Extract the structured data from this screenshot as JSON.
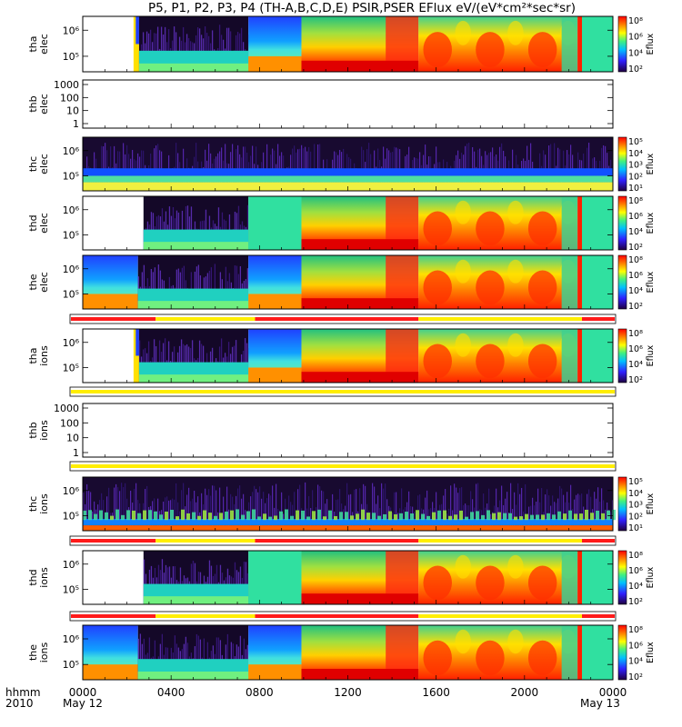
{
  "title": "P5, P1, P2, P3, P4 (TH-A,B,C,D,E) PSIR,PSER EFlux eV/(eV*cm²*sec*sr)",
  "bottom": {
    "hhmm": "hhmm",
    "year": "2010",
    "date_start": "May 12",
    "date_end": "May 13"
  },
  "chart_data": {
    "type": "heatmap",
    "x_axis": {
      "range_hours": [
        0,
        24
      ],
      "tick_labels": [
        "0000",
        "0400",
        "0800",
        "1200",
        "1600",
        "2000",
        "0000"
      ]
    },
    "panels": [
      {
        "id": "tha-elec",
        "ylabel": [
          "tha",
          "elec"
        ],
        "scale": "log",
        "yticks": [
          "10⁶",
          "10⁵"
        ],
        "colorbar": [
          "10⁸",
          "10⁶",
          "10⁴",
          "10²"
        ],
        "colorbar_label": "Eflux",
        "kind": "elec",
        "segments": [
          {
            "h0": 0.0,
            "h1": 2.3,
            "v": "empty"
          },
          {
            "h0": 2.3,
            "h1": 2.55,
            "v": "yellow_blue"
          },
          {
            "h0": 2.55,
            "h1": 7.5,
            "v": "dark_top"
          },
          {
            "h0": 7.5,
            "h1": 9.9,
            "v": "blue_band"
          },
          {
            "h0": 9.9,
            "h1": 15.2,
            "v": "red_grad"
          },
          {
            "h0": 15.2,
            "h1": 22.4,
            "v": "x_pattern"
          },
          {
            "h0": 22.4,
            "h1": 22.6,
            "v": "red_bar"
          },
          {
            "h0": 22.6,
            "h1": 24,
            "v": "green"
          }
        ]
      },
      {
        "id": "thb-elec",
        "ylabel": [
          "thb",
          "elec"
        ],
        "scale": "log",
        "yticks": [
          "1000",
          "100",
          "10",
          "1"
        ],
        "kind": "empty"
      },
      {
        "id": "thc-elec",
        "ylabel": [
          "thc",
          "elec"
        ],
        "scale": "log",
        "yticks": [
          "10⁶",
          "10⁵"
        ],
        "colorbar": [
          "10⁵",
          "10⁴",
          "10³",
          "10²",
          "10¹"
        ],
        "colorbar_label": "Eflux",
        "kind": "thc_elec"
      },
      {
        "id": "thd-elec",
        "ylabel": [
          "thd",
          "elec"
        ],
        "scale": "log",
        "yticks": [
          "10⁶",
          "10⁵"
        ],
        "colorbar": [
          "10⁸",
          "10⁶",
          "10⁴",
          "10²"
        ],
        "colorbar_label": "Eflux",
        "kind": "elec",
        "segments": [
          {
            "h0": 0.0,
            "h1": 2.75,
            "v": "empty"
          },
          {
            "h0": 2.75,
            "h1": 7.5,
            "v": "dark_top"
          },
          {
            "h0": 7.5,
            "h1": 9.9,
            "v": "green"
          },
          {
            "h0": 9.9,
            "h1": 15.2,
            "v": "red_grad"
          },
          {
            "h0": 15.2,
            "h1": 22.4,
            "v": "x_pattern"
          },
          {
            "h0": 22.4,
            "h1": 22.6,
            "v": "red_bar"
          },
          {
            "h0": 22.6,
            "h1": 24,
            "v": "green"
          }
        ]
      },
      {
        "id": "the-elec",
        "ylabel": [
          "the",
          "elec"
        ],
        "scale": "log",
        "yticks": [
          "10⁶",
          "10⁵"
        ],
        "colorbar": [
          "10⁸",
          "10⁶",
          "10⁴",
          "10²"
        ],
        "colorbar_label": "Eflux",
        "kind": "elec",
        "segments": [
          {
            "h0": 0.0,
            "h1": 2.5,
            "v": "blue_band"
          },
          {
            "h0": 2.5,
            "h1": 7.5,
            "v": "dark_top"
          },
          {
            "h0": 7.5,
            "h1": 9.9,
            "v": "blue_band"
          },
          {
            "h0": 9.9,
            "h1": 15.2,
            "v": "red_grad"
          },
          {
            "h0": 15.2,
            "h1": 22.4,
            "v": "x_pattern"
          },
          {
            "h0": 22.4,
            "h1": 22.6,
            "v": "red_bar"
          },
          {
            "h0": 22.6,
            "h1": 24,
            "v": "green"
          }
        ]
      },
      {
        "id": "tha-ions",
        "ylabel": [
          "tha",
          "ions"
        ],
        "scale": "log",
        "yticks": [
          "10⁶",
          "10⁵"
        ],
        "colorbar": [
          "10⁸",
          "10⁶",
          "10⁴",
          "10²"
        ],
        "colorbar_label": "Eflux",
        "kind": "elec",
        "segments": [
          {
            "h0": 0.0,
            "h1": 2.3,
            "v": "empty"
          },
          {
            "h0": 2.3,
            "h1": 2.55,
            "v": "yellow_blue"
          },
          {
            "h0": 2.55,
            "h1": 7.5,
            "v": "dark_top"
          },
          {
            "h0": 7.5,
            "h1": 9.9,
            "v": "blue_band"
          },
          {
            "h0": 9.9,
            "h1": 15.2,
            "v": "red_grad"
          },
          {
            "h0": 15.2,
            "h1": 22.4,
            "v": "x_pattern"
          },
          {
            "h0": 22.4,
            "h1": 22.6,
            "v": "red_bar"
          },
          {
            "h0": 22.6,
            "h1": 24,
            "v": "green"
          }
        ]
      },
      {
        "id": "thb-ions",
        "ylabel": [
          "thb",
          "ions"
        ],
        "scale": "log",
        "yticks": [
          "1000",
          "100",
          "10",
          "1"
        ],
        "kind": "empty"
      },
      {
        "id": "thc-ions",
        "ylabel": [
          "thc",
          "ions"
        ],
        "scale": "log",
        "yticks": [
          "10⁶",
          "10⁵"
        ],
        "colorbar": [
          "10⁵",
          "10⁴",
          "10³",
          "10²",
          "10¹"
        ],
        "colorbar_label": "Eflux",
        "kind": "thc_ions"
      },
      {
        "id": "thd-ions",
        "ylabel": [
          "thd",
          "ions"
        ],
        "scale": "log",
        "yticks": [
          "10⁶",
          "10⁵"
        ],
        "colorbar": [
          "10⁸",
          "10⁶",
          "10⁴",
          "10²"
        ],
        "colorbar_label": "Eflux",
        "kind": "elec",
        "segments": [
          {
            "h0": 0.0,
            "h1": 2.75,
            "v": "empty"
          },
          {
            "h0": 2.75,
            "h1": 7.5,
            "v": "dark_top"
          },
          {
            "h0": 7.5,
            "h1": 9.9,
            "v": "green"
          },
          {
            "h0": 9.9,
            "h1": 15.2,
            "v": "red_grad"
          },
          {
            "h0": 15.2,
            "h1": 22.4,
            "v": "x_pattern"
          },
          {
            "h0": 22.4,
            "h1": 22.6,
            "v": "red_bar"
          },
          {
            "h0": 22.6,
            "h1": 24,
            "v": "green"
          }
        ]
      },
      {
        "id": "the-ions",
        "ylabel": [
          "the",
          "ions"
        ],
        "scale": "log",
        "yticks": [
          "10⁶",
          "10⁵"
        ],
        "colorbar": [
          "10⁸",
          "10⁶",
          "10⁴",
          "10²"
        ],
        "colorbar_label": "Eflux",
        "kind": "elec",
        "segments": [
          {
            "h0": 0.0,
            "h1": 2.5,
            "v": "blue_band"
          },
          {
            "h0": 2.5,
            "h1": 7.5,
            "v": "dark_top"
          },
          {
            "h0": 7.5,
            "h1": 9.9,
            "v": "blue_band"
          },
          {
            "h0": 9.9,
            "h1": 15.2,
            "v": "red_grad"
          },
          {
            "h0": 15.2,
            "h1": 22.4,
            "v": "x_pattern"
          },
          {
            "h0": 22.4,
            "h1": 22.6,
            "v": "red_bar"
          },
          {
            "h0": 22.6,
            "h1": 24,
            "v": "green"
          }
        ]
      }
    ],
    "mode_bars": [
      {
        "id": "mode-bar-the-elec",
        "segments": [
          {
            "h0": 0,
            "h1": 3.3,
            "c": "red"
          },
          {
            "h0": 3.3,
            "h1": 7.8,
            "c": "yellow"
          },
          {
            "h0": 7.8,
            "h1": 15.2,
            "c": "red"
          },
          {
            "h0": 15.2,
            "h1": 22.6,
            "c": "yellow"
          },
          {
            "h0": 22.6,
            "h1": 24,
            "c": "red"
          }
        ]
      },
      {
        "id": "mode-bar-tha-ions",
        "segments": [
          {
            "h0": 0,
            "h1": 24,
            "c": "yellow"
          }
        ]
      },
      {
        "id": "mode-bar-thb-ions",
        "segments": [
          {
            "h0": 0,
            "h1": 24,
            "c": "yellow"
          }
        ]
      },
      {
        "id": "mode-bar-thc-ions",
        "segments": [
          {
            "h0": 0,
            "h1": 3.3,
            "c": "red"
          },
          {
            "h0": 3.3,
            "h1": 7.8,
            "c": "yellow"
          },
          {
            "h0": 7.8,
            "h1": 15.2,
            "c": "red"
          },
          {
            "h0": 15.2,
            "h1": 22.6,
            "c": "yellow"
          },
          {
            "h0": 22.6,
            "h1": 24,
            "c": "red"
          }
        ]
      },
      {
        "id": "mode-bar-thd-ions",
        "segments": [
          {
            "h0": 0,
            "h1": 3.3,
            "c": "red"
          },
          {
            "h0": 3.3,
            "h1": 7.8,
            "c": "yellow"
          },
          {
            "h0": 7.8,
            "h1": 15.2,
            "c": "red"
          },
          {
            "h0": 15.2,
            "h1": 22.6,
            "c": "yellow"
          },
          {
            "h0": 22.6,
            "h1": 24,
            "c": "red"
          }
        ]
      }
    ],
    "colors": {
      "red": "#ff1a1a",
      "yellow": "#ffee00",
      "dark": "#1a0a2e",
      "purple": "#6020a0",
      "blue": "#1030ff",
      "cyan": "#00c0e0",
      "green": "#40e080",
      "orange": "#ff8000"
    }
  }
}
